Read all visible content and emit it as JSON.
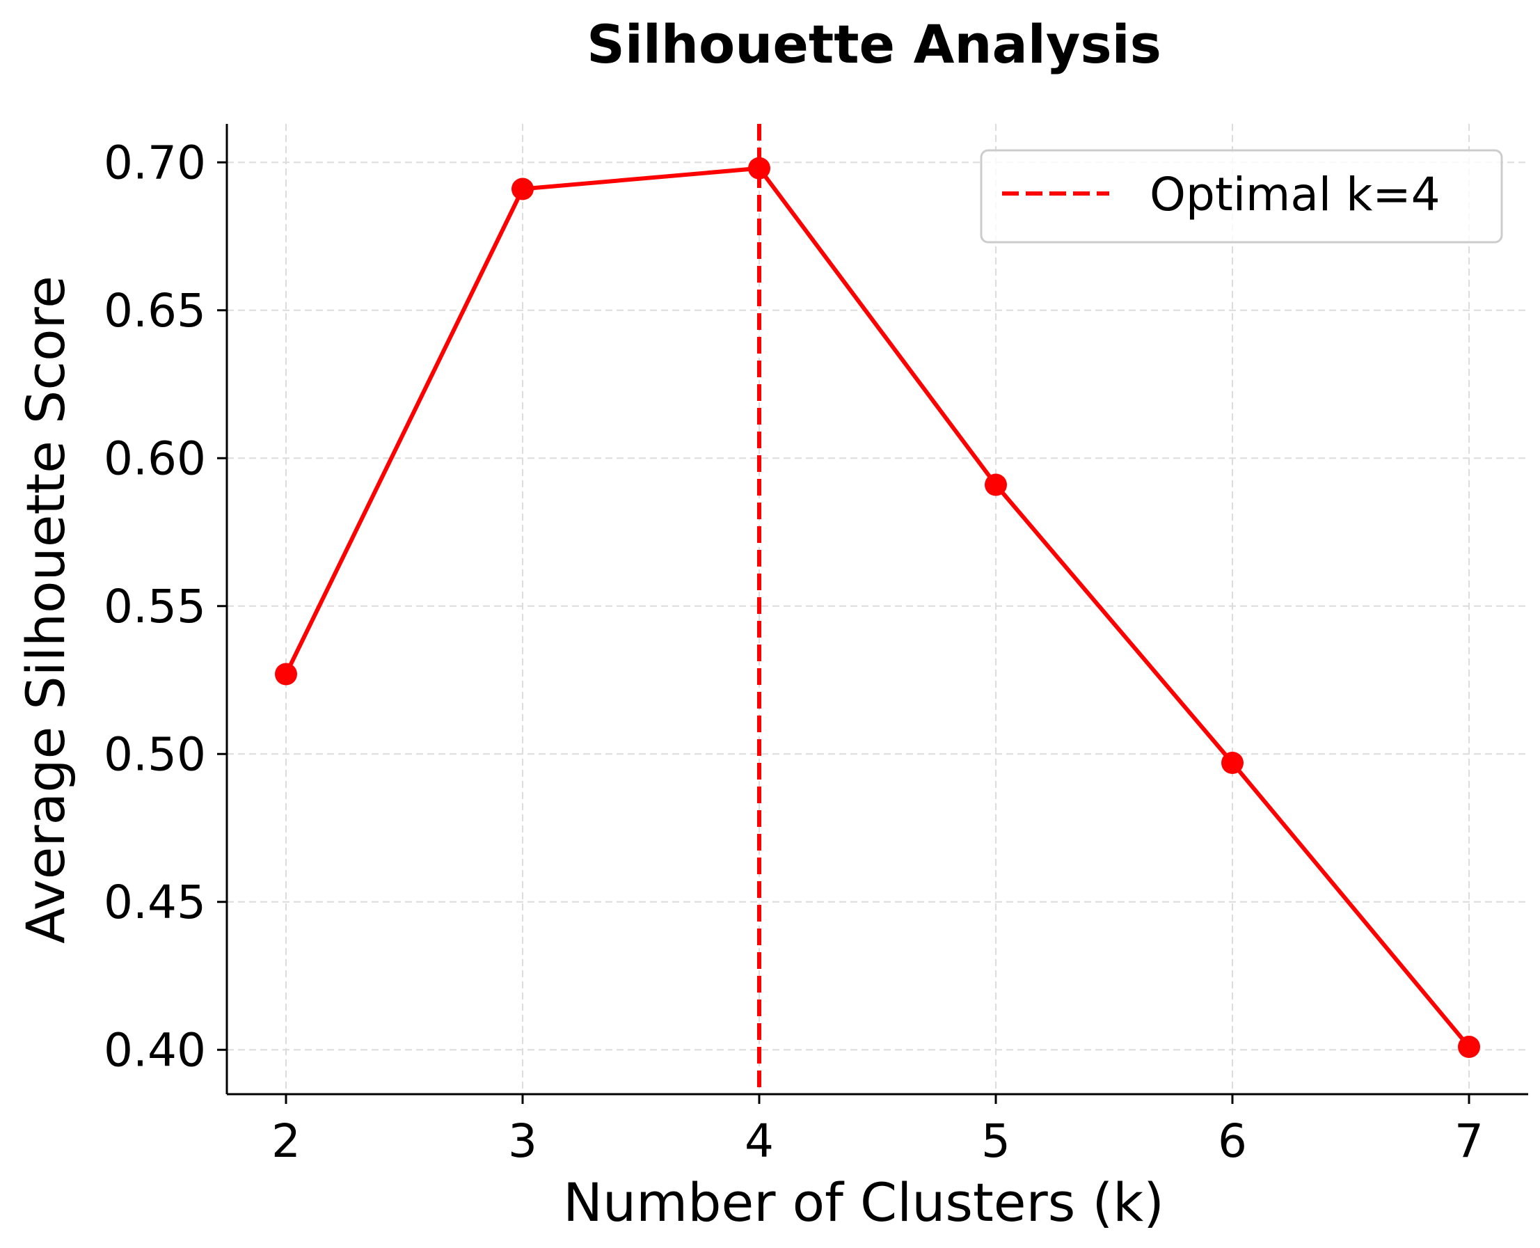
{
  "chart_data": {
    "type": "line",
    "title": "Silhouette Analysis",
    "xlabel": "Number of Clusters (k)",
    "ylabel": "Average Silhouette Score",
    "x": [
      2,
      3,
      4,
      5,
      6,
      7
    ],
    "xticks": [
      "2",
      "3",
      "4",
      "5",
      "6",
      "7"
    ],
    "yticks": [
      "0.40",
      "0.45",
      "0.50",
      "0.55",
      "0.60",
      "0.65",
      "0.70"
    ],
    "ytick_values": [
      0.4,
      0.45,
      0.5,
      0.55,
      0.6,
      0.65,
      0.7
    ],
    "xlim": [
      1.75,
      7.25
    ],
    "ylim": [
      0.385,
      0.713
    ],
    "grid": true,
    "series": [
      {
        "name": "Silhouette Score",
        "values": [
          0.527,
          0.691,
          0.698,
          0.591,
          0.497,
          0.401
        ],
        "color": "#ff0000",
        "marker": "circle"
      }
    ],
    "reference_line": {
      "orientation": "vertical",
      "x": 4,
      "style": "dashed",
      "color": "#ff0000"
    },
    "legend": {
      "position": "top-right",
      "entries": [
        "Optimal k=4"
      ]
    }
  }
}
